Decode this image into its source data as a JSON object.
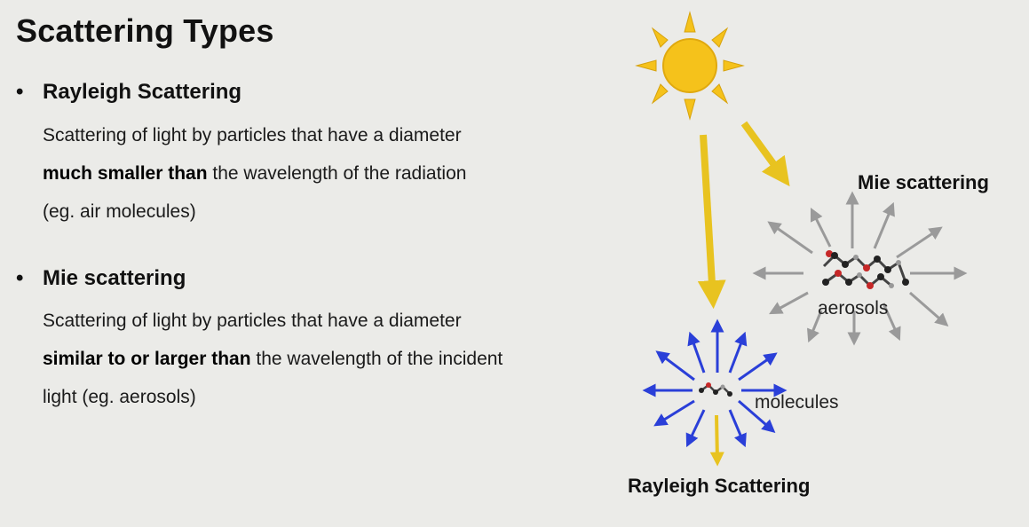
{
  "title": "Scattering Types",
  "bullets": [
    {
      "heading": "Rayleigh Scattering",
      "line1": "Scattering of light by particles that have a diameter",
      "bold": "much smaller than",
      "after_bold": " the wavelength of the radiation",
      "line3": "(eg. air molecules)"
    },
    {
      "heading": "Mie scattering",
      "line1": "Scattering of light by particles that have a diameter",
      "bold": "similar to or larger than",
      "after_bold": " the wavelength of the incident",
      "line3": "light (eg. aerosols)"
    }
  ],
  "diagram": {
    "mie_label": "Mie scattering",
    "aerosols_label": "aerosols",
    "molecules_label": "molecules",
    "rayleigh_label": "Rayleigh Scattering",
    "colors": {
      "sun": "#f5c21b",
      "light_beam": "#e8c320",
      "rayleigh_arrows": "#2a3fd8",
      "mie_arrows": "#9a9a9a"
    }
  }
}
